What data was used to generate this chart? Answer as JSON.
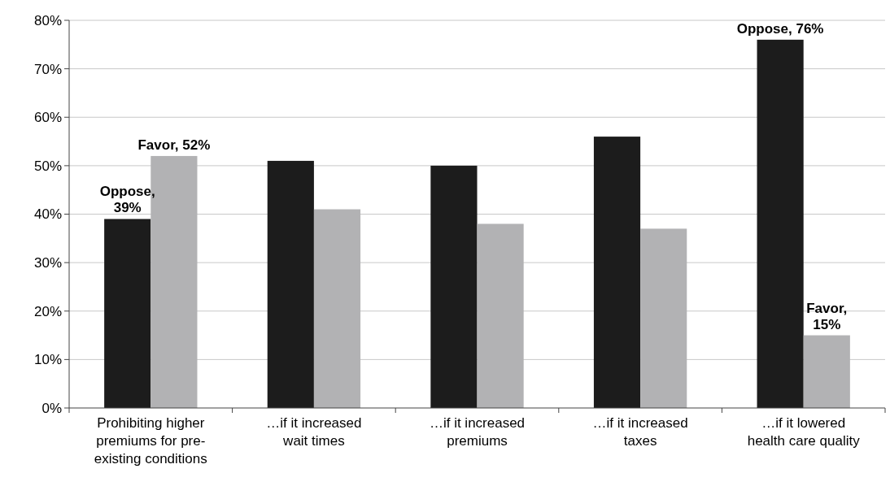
{
  "chart_data": {
    "type": "bar",
    "categories": [
      "Prohibiting higher premiums for pre-existing conditions",
      "…if it increased wait times",
      "…if it increased premiums",
      "…if it increased taxes",
      "…if it lowered health care quality"
    ],
    "series": [
      {
        "color": "#1c1c1c",
        "values": [
          39,
          51,
          50,
          56,
          76
        ],
        "value_labels": [
          "Oppose, 39%",
          null,
          null,
          null,
          "Oppose, 76%"
        ]
      },
      {
        "color": "#b2b2b4",
        "values": [
          52,
          41,
          38,
          37,
          15
        ],
        "value_labels": [
          "Favor, 52%",
          null,
          null,
          null,
          "Favor, 15%"
        ]
      }
    ],
    "ylim": [
      0,
      80
    ],
    "yticks": [
      {
        "value": 0,
        "label": "0%"
      },
      {
        "value": 10,
        "label": "10%"
      },
      {
        "value": 20,
        "label": "20%"
      },
      {
        "value": 30,
        "label": "30%"
      },
      {
        "value": 40,
        "label": "40%"
      },
      {
        "value": 50,
        "label": "50%"
      },
      {
        "value": 60,
        "label": "60%"
      },
      {
        "value": 70,
        "label": "70%"
      },
      {
        "value": 80,
        "label": "80%"
      }
    ],
    "grid": "y"
  }
}
